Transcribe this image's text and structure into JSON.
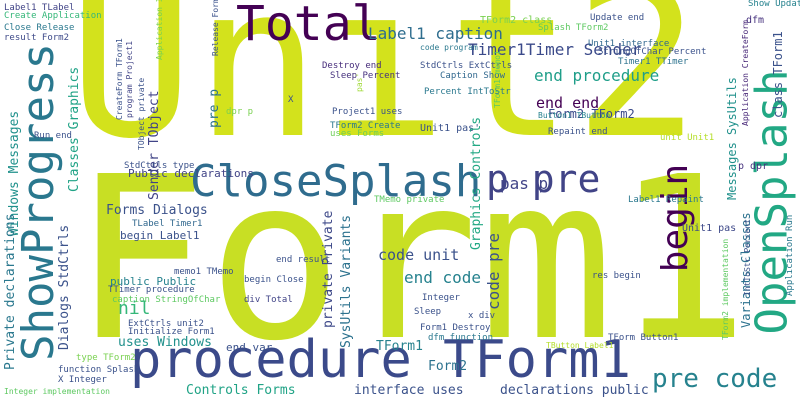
{
  "palette": {
    "dark_purple": "#440154",
    "navy": "#3b4a8a",
    "indigo": "#414487",
    "blue": "#31688e",
    "teal": "#26828e",
    "green": "#35b779",
    "lime": "#7ad151",
    "yellow": "#d3e21c",
    "light_yellow": "#b5de2b",
    "background": "#ffffff"
  },
  "words": [
    {
      "text": "Unit2",
      "color": "#d3e21c"
    },
    {
      "text": "Form1",
      "color": "#c8df24"
    },
    {
      "text": "procedure TForm1",
      "color": "#3b4a8a"
    },
    {
      "text": "Total",
      "color": "#440154"
    },
    {
      "text": "CloseSplash",
      "color": "#2f6c8e"
    },
    {
      "text": "ShowProgress",
      "color": "#2a788e"
    },
    {
      "text": "OpenSplash",
      "color": "#22a884"
    },
    {
      "text": "begin",
      "color": "#440154"
    },
    {
      "text": "p pre",
      "color": "#414487"
    },
    {
      "text": "pre code",
      "color": "#26828e"
    },
    {
      "text": "TForm2 class",
      "color": "#7ad151"
    },
    {
      "text": "Timer1Timer Sender",
      "color": "#3b4a8a"
    },
    {
      "text": "Label1 caption",
      "color": "#2e6d8e"
    },
    {
      "text": "end procedure",
      "color": "#1f9e89"
    },
    {
      "text": "end end",
      "color": "#440154"
    },
    {
      "text": "Form2 TForm2",
      "color": "#3b4a8a"
    },
    {
      "text": "Label1 TLabel",
      "color": "#414487"
    },
    {
      "text": "Create Application",
      "color": "#35b779"
    },
    {
      "text": "Close Release",
      "color": "#2a788e"
    },
    {
      "text": "result Form2",
      "color": "#3e4a89"
    },
    {
      "text": "Application Initialize",
      "color": "#7ad151"
    },
    {
      "text": "Release Form1",
      "color": "#3b528b"
    },
    {
      "text": "code program",
      "color": "#2a788e"
    },
    {
      "text": "Unit1 interface",
      "color": "#31688e"
    },
    {
      "text": "Splash TForm2",
      "color": "#5ec962"
    },
    {
      "text": "StringOfChar Percent",
      "color": "#3b528b"
    },
    {
      "text": "Timer1 TTimer",
      "color": "#2c728e"
    },
    {
      "text": "Update end",
      "color": "#3b528b"
    },
    {
      "text": "Show Update",
      "color": "#26828e"
    },
    {
      "text": "dfm",
      "color": "#46327e"
    },
    {
      "text": "Application CreateForm",
      "color": "#482878"
    },
    {
      "text": "class TForm1",
      "color": "#3b528b"
    },
    {
      "text": "p dpr",
      "color": "#46327e"
    },
    {
      "text": "Application Run",
      "color": "#2a788e"
    },
    {
      "text": "Unit1 pas",
      "color": "#3e4989"
    },
    {
      "text": "Label1 Repaint",
      "color": "#2a788e"
    },
    {
      "text": "Repaint end",
      "color": "#3b528b"
    },
    {
      "text": "TForm2 implementation",
      "color": "#5ec962"
    },
    {
      "text": "Variants Classes",
      "color": "#2c728e"
    },
    {
      "text": "Messages SysUtils",
      "color": "#21918c"
    },
    {
      "text": "TObject private",
      "color": "#3b528b"
    },
    {
      "text": "CreateForm TForm1",
      "color": "#3b528b"
    },
    {
      "text": "program Project1",
      "color": "#414487"
    },
    {
      "text": "Destroy end",
      "color": "#472d7b"
    },
    {
      "text": "Sleep Percent",
      "color": "#46327e"
    },
    {
      "text": "StdCtrls ExtCtrls",
      "color": "#3b528b"
    },
    {
      "text": "Caption Show",
      "color": "#31688e"
    },
    {
      "text": "Percent IntToStr",
      "color": "#2a788e"
    },
    {
      "text": "Button1 TButton",
      "color": "#26828e"
    },
    {
      "text": "Project1 uses",
      "color": "#3b528b"
    },
    {
      "text": "uses Forms",
      "color": "#6ece58"
    },
    {
      "text": "TForm2 Create",
      "color": "#2a788e"
    },
    {
      "text": "Unit1 pas'",
      "color": "#3b528b"
    },
    {
      "text": "unit Unit1",
      "color": "#b5de2b"
    },
    {
      "text": "TForm1 memo1",
      "color": "#5ec962"
    },
    {
      "text": "pas'",
      "color": "#a0da39"
    },
    {
      "text": "X",
      "color": "#3b528b"
    },
    {
      "text": "Windows Messages",
      "color": "#21918c"
    },
    {
      "text": "Classes Graphics",
      "color": "#20a386"
    },
    {
      "text": "Private declarations",
      "color": "#2a788e"
    },
    {
      "text": "Dialogs StdCtrls",
      "color": "#3b528b"
    },
    {
      "text": "Sender TObject",
      "color": "#414487"
    },
    {
      "text": "pre p",
      "color": "#2c728e"
    },
    {
      "text": "Run end",
      "color": "#3b528b"
    },
    {
      "text": "StdCtrls type",
      "color": "#3b528b"
    },
    {
      "text": "Public declarations",
      "color": "#414487"
    },
    {
      "text": "TLabel Timer1",
      "color": "#31688e"
    },
    {
      "text": "Forms Dialogs",
      "color": "#3b528b"
    },
    {
      "text": "begin Label1",
      "color": "#3b528b"
    },
    {
      "text": "public Public",
      "color": "#26828e"
    },
    {
      "text": "TTimer procedure",
      "color": "#3b528b"
    },
    {
      "text": "caption StringOfChar",
      "color": "#5ec962"
    },
    {
      "text": "memo1 TMemo",
      "color": "#3b528b"
    },
    {
      "text": "nil",
      "color": "#35b779"
    },
    {
      "text": "uses Windows",
      "color": "#21918c"
    },
    {
      "text": "TMemo private",
      "color": "#5ec962"
    },
    {
      "text": "div Total",
      "color": "#414487"
    },
    {
      "text": "begin Close",
      "color": "#3b528b"
    },
    {
      "text": "end result",
      "color": "#3b528b"
    },
    {
      "text": "private Private",
      "color": "#3e4989"
    },
    {
      "text": "SysUtils Variants",
      "color": "#2c728e"
    },
    {
      "text": "Graphics Controls",
      "color": "#22a884"
    },
    {
      "text": "code unit",
      "color": "#3b528b"
    },
    {
      "text": "end code",
      "color": "#26828e"
    },
    {
      "text": "code pre",
      "color": "#3b528b"
    },
    {
      "text": "pas p",
      "color": "#414487"
    },
    {
      "text": "Integer",
      "color": "#3b528b"
    },
    {
      "text": "x div",
      "color": "#3b528b"
    },
    {
      "text": "Sleep",
      "color": "#3b528b"
    },
    {
      "text": "res begin",
      "color": "#3b528b"
    },
    {
      "text": "Form1 Destroy",
      "color": "#3b528b"
    },
    {
      "text": "dfm function",
      "color": "#2a788e"
    },
    {
      "text": "TButton Label1",
      "color": "#b5de2b"
    },
    {
      "text": "TForm Button1",
      "color": "#3b528b"
    },
    {
      "text": "IntToStr Percent",
      "color": "#3b528b"
    },
    {
      "text": "ExtCtrls unit2",
      "color": "#3b528b"
    },
    {
      "text": "Initialize Form1",
      "color": "#3b528b"
    },
    {
      "text": "end var",
      "color": "#3b528b"
    },
    {
      "text": "TForm1",
      "color": "#26828e"
    },
    {
      "text": "Form2",
      "color": "#2c728e"
    },
    {
      "text": "type TForm2",
      "color": "#7ad151"
    },
    {
      "text": "function Splash",
      "color": "#3b528b"
    },
    {
      "text": "X Integer",
      "color": "#3b528b"
    },
    {
      "text": "Integer implementation",
      "color": "#5ec962"
    },
    {
      "text": "Controls Forms",
      "color": "#20a386"
    },
    {
      "text": "interface uses",
      "color": "#3b528b"
    },
    {
      "text": "declarations public",
      "color": "#3b528b"
    },
    {
      "text": "dpr p",
      "color": "#7ad151"
    }
  ]
}
